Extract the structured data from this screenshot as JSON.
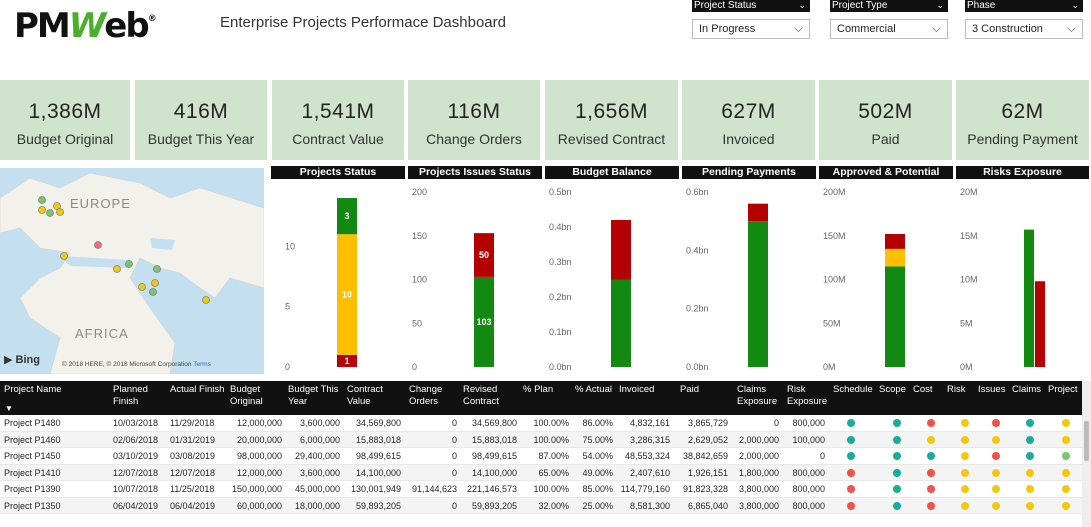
{
  "header": {
    "logo_text": "PMWeb",
    "logo_mark": "®",
    "title": "Enterprise Projects Performace Dashboard"
  },
  "slicers": [
    {
      "label": "Project Status",
      "value": "In Progress"
    },
    {
      "label": "Project Type",
      "value": "Commercial"
    },
    {
      "label": "Phase",
      "value": "3 Construction"
    }
  ],
  "kpis": [
    {
      "value": "1,386M",
      "label": "Budget Original"
    },
    {
      "value": "416M",
      "label": "Budget This Year"
    },
    {
      "value": "1,541M",
      "label": "Contract Value"
    },
    {
      "value": "116M",
      "label": "Change Orders"
    },
    {
      "value": "1,656M",
      "label": "Revised Contract"
    },
    {
      "value": "627M",
      "label": "Invoiced"
    },
    {
      "value": "502M",
      "label": "Paid"
    },
    {
      "value": "62M",
      "label": "Pending Payment"
    }
  ],
  "map": {
    "labels": [
      "EUROPE",
      "AFRICA"
    ],
    "brand": "Bing",
    "copyright": "© 2018 HERE, © 2018 Microsoft Corporation",
    "terms": "Terms"
  },
  "colors": {
    "green": "#128a12",
    "yellow": "#ffbf00",
    "red": "#b40000",
    "teal": "#1aab9b",
    "orange_red": "#f2524a",
    "yellow_dot": "#f2c80f",
    "lightgreen": "#7cc46d"
  },
  "chart_data": [
    {
      "type": "bar",
      "title": "Projects Status",
      "ylim": [
        0,
        14.5
      ],
      "ticks": [
        0,
        5,
        10
      ],
      "stack": [
        {
          "color": "#b40000",
          "value": 1,
          "label": "1"
        },
        {
          "color": "#ffbf00",
          "value": 10,
          "label": "10"
        },
        {
          "color": "#128a12",
          "value": 3,
          "label": "3"
        }
      ]
    },
    {
      "type": "bar",
      "title": "Projects Issues Status",
      "ylim": [
        0,
        200
      ],
      "ticks": [
        0,
        50,
        100,
        150,
        200
      ],
      "stack": [
        {
          "color": "#128a12",
          "value": 103,
          "label": "103"
        },
        {
          "color": "#b40000",
          "value": 50,
          "label": "50"
        }
      ]
    },
    {
      "type": "bar",
      "title": "Budget Balance",
      "ylim": [
        0,
        0.5
      ],
      "ticks": [
        0,
        0.1,
        0.2,
        0.3,
        0.4,
        0.5
      ],
      "tick_labels": [
        "0.0bn",
        "0.1bn",
        "0.2bn",
        "0.3bn",
        "0.4bn",
        "0.5bn"
      ],
      "stack": [
        {
          "color": "#128a12",
          "value": 0.25,
          "label": ""
        },
        {
          "color": "#b40000",
          "value": 0.17,
          "label": ""
        }
      ]
    },
    {
      "type": "bar",
      "title": "Pending Payments",
      "ylim": [
        0,
        0.6
      ],
      "ticks": [
        0,
        0.2,
        0.4,
        0.6
      ],
      "tick_labels": [
        "0.0bn",
        "0.2bn",
        "0.4bn",
        "0.6bn"
      ],
      "stack": [
        {
          "color": "#128a12",
          "value": 0.5,
          "label": ""
        },
        {
          "color": "#b40000",
          "value": 0.06,
          "label": ""
        }
      ]
    },
    {
      "type": "bar",
      "title": "Approved & Potential",
      "ylim": [
        0,
        200
      ],
      "ticks": [
        0,
        50,
        100,
        150,
        200
      ],
      "tick_labels": [
        "0M",
        "50M",
        "100M",
        "150M",
        "200M"
      ],
      "stack": [
        {
          "color": "#128a12",
          "value": 115,
          "label": ""
        },
        {
          "color": "#ffbf00",
          "value": 20,
          "label": ""
        },
        {
          "color": "#b40000",
          "value": 17,
          "label": ""
        }
      ]
    },
    {
      "type": "bar",
      "title": "Risks Exposure",
      "ylim": [
        0,
        20
      ],
      "ticks": [
        0,
        5,
        10,
        15,
        20
      ],
      "tick_labels": [
        "0M",
        "5M",
        "10M",
        "15M",
        "20M"
      ],
      "groups": [
        {
          "color": "#128a12",
          "value": 15.7
        },
        {
          "color": "#b40000",
          "value": 9.8
        }
      ]
    }
  ],
  "table": {
    "columns": [
      "Project Name",
      "Planned Finish",
      "Actual Finish",
      "Budget Original",
      "Budget This Year",
      "Contract Value",
      "Change Orders",
      "Revised Contract",
      "% Plan",
      "% Actual",
      "Invoiced",
      "Paid",
      "Claims Exposure",
      "Risk Exposure",
      "Schedule",
      "Scope",
      "Cost",
      "Risk",
      "Issues",
      "Claims",
      "Project"
    ],
    "sort_glyph": "▼",
    "rows": [
      {
        "cells": [
          "Project P1480",
          "10/03/2018",
          "11/29/2018",
          "12,000,000",
          "3,600,000",
          "34,569,800",
          "0",
          "34,569,800",
          "100.00%",
          "86.00%",
          "4,832,161",
          "3,865,729",
          "0",
          "800,000"
        ],
        "dots": [
          "teal",
          "teal",
          "red",
          "yellow",
          "red",
          "teal",
          "yellow"
        ]
      },
      {
        "cells": [
          "Project P1460",
          "02/06/2018",
          "01/31/2019",
          "20,000,000",
          "6,000,000",
          "15,883,018",
          "0",
          "15,883,018",
          "100.00%",
          "75.00%",
          "3,286,315",
          "2,629,052",
          "2,000,000",
          "100,000"
        ],
        "dots": [
          "teal",
          "teal",
          "yellow",
          "yellow",
          "yellow",
          "teal",
          "yellow"
        ]
      },
      {
        "cells": [
          "Project P1450",
          "03/10/2019",
          "03/08/2019",
          "98,000,000",
          "29,400,000",
          "98,499,615",
          "0",
          "98,499,615",
          "87.00%",
          "54.00%",
          "48,553,324",
          "38,842,659",
          "2,000,000",
          "0"
        ],
        "dots": [
          "teal",
          "teal",
          "teal",
          "yellow",
          "red",
          "teal",
          "lightgreen"
        ]
      },
      {
        "cells": [
          "Project P1410",
          "12/07/2018",
          "12/07/2018",
          "12,000,000",
          "3,600,000",
          "14,100,000",
          "0",
          "14,100,000",
          "65.00%",
          "49.00%",
          "2,407,610",
          "1,926,151",
          "1,800,000",
          "800,000"
        ],
        "dots": [
          "red",
          "teal",
          "red",
          "yellow",
          "yellow",
          "yellow",
          "yellow"
        ]
      },
      {
        "cells": [
          "Project P1390",
          "10/07/2018",
          "11/25/2018",
          "150,000,000",
          "45,000,000",
          "130,001,949",
          "91,144,623",
          "221,146,573",
          "100.00%",
          "85.00%",
          "114,779,160",
          "91,823,328",
          "3,800,000",
          "800,000"
        ],
        "dots": [
          "red",
          "teal",
          "red",
          "yellow",
          "yellow",
          "yellow",
          "yellow"
        ]
      },
      {
        "cells": [
          "Project P1350",
          "06/04/2019",
          "06/04/2019",
          "60,000,000",
          "18,000,000",
          "59,893,205",
          "0",
          "59,893,205",
          "32.00%",
          "25.00%",
          "8,581,300",
          "6,865,040",
          "3,800,000",
          "800,000"
        ],
        "dots": [
          "red",
          "teal",
          "red",
          "yellow",
          "yellow",
          "yellow",
          "yellow"
        ]
      }
    ]
  }
}
